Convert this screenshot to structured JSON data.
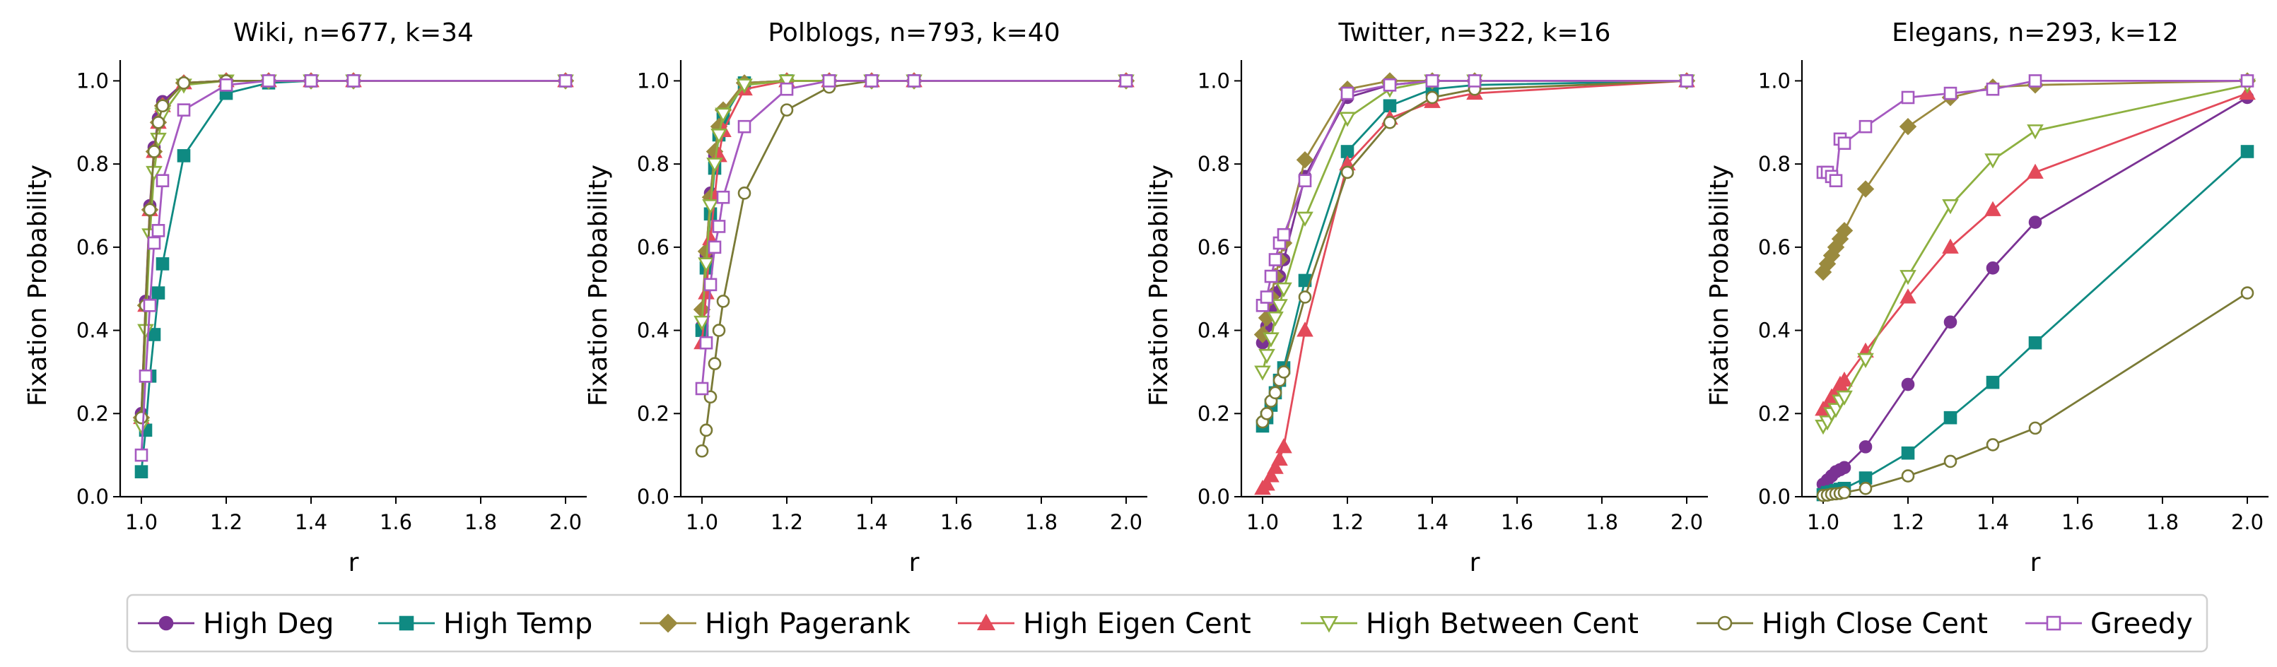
{
  "chart_data": [
    {
      "type": "line",
      "title": "Wiki, n=677, k=34",
      "xlabel": "r",
      "ylabel": "Fixation Probability",
      "xlim": [
        0.95,
        2.05
      ],
      "ylim": [
        0.0,
        1.05
      ],
      "xticks": [
        "1.0",
        "1.2",
        "1.4",
        "1.6",
        "1.8",
        "2.0"
      ],
      "yticks": [
        "0.0",
        "0.2",
        "0.4",
        "0.6",
        "0.8",
        "1.0"
      ],
      "series": [
        {
          "name": "High Deg",
          "x": [
            1.0,
            1.01,
            1.02,
            1.03,
            1.04,
            1.05,
            1.1,
            1.2,
            1.3,
            1.4,
            1.5,
            2.0
          ],
          "values": [
            0.2,
            0.47,
            0.7,
            0.84,
            0.91,
            0.95,
            0.995,
            1.0,
            1.0,
            1.0,
            1.0,
            1.0
          ]
        },
        {
          "name": "High Temp",
          "x": [
            1.0,
            1.01,
            1.02,
            1.03,
            1.04,
            1.05,
            1.1,
            1.2,
            1.3,
            1.4,
            1.5,
            2.0
          ],
          "values": [
            0.06,
            0.16,
            0.29,
            0.39,
            0.49,
            0.56,
            0.82,
            0.97,
            0.995,
            1.0,
            1.0,
            1.0
          ]
        },
        {
          "name": "High Pagerank",
          "x": [
            1.0,
            1.01,
            1.02,
            1.03,
            1.04,
            1.05,
            1.1,
            1.2,
            1.3,
            1.4,
            1.5,
            2.0
          ],
          "values": [
            0.19,
            0.46,
            0.69,
            0.83,
            0.9,
            0.94,
            0.995,
            1.0,
            1.0,
            1.0,
            1.0,
            1.0
          ]
        },
        {
          "name": "High Eigen Cent",
          "x": [
            1.0,
            1.01,
            1.02,
            1.03,
            1.04,
            1.05,
            1.1,
            1.2,
            1.3,
            1.4,
            1.5,
            2.0
          ],
          "values": [
            0.19,
            0.46,
            0.69,
            0.83,
            0.9,
            0.94,
            0.995,
            1.0,
            1.0,
            1.0,
            1.0,
            1.0
          ]
        },
        {
          "name": "High Between Cent",
          "x": [
            1.0,
            1.01,
            1.02,
            1.03,
            1.04,
            1.05,
            1.1,
            1.2,
            1.3,
            1.4,
            1.5,
            2.0
          ],
          "values": [
            0.17,
            0.4,
            0.63,
            0.78,
            0.86,
            0.92,
            0.99,
            1.0,
            1.0,
            1.0,
            1.0,
            1.0
          ]
        },
        {
          "name": "High Close Cent",
          "x": [
            1.0,
            1.01,
            1.02,
            1.03,
            1.04,
            1.05,
            1.1,
            1.2,
            1.3,
            1.4,
            1.5,
            2.0
          ],
          "values": [
            0.19,
            0.46,
            0.69,
            0.83,
            0.9,
            0.94,
            0.995,
            1.0,
            1.0,
            1.0,
            1.0,
            1.0
          ]
        },
        {
          "name": "Greedy",
          "x": [
            1.0,
            1.01,
            1.02,
            1.03,
            1.04,
            1.05,
            1.1,
            1.2,
            1.3,
            1.4,
            1.5,
            2.0
          ],
          "values": [
            0.1,
            0.29,
            0.46,
            0.61,
            0.64,
            0.76,
            0.93,
            0.99,
            1.0,
            1.0,
            1.0,
            1.0
          ]
        }
      ]
    },
    {
      "type": "line",
      "title": "Polblogs, n=793, k=40",
      "xlabel": "r",
      "ylabel": "Fixation Probability",
      "xlim": [
        0.95,
        2.05
      ],
      "ylim": [
        0.0,
        1.05
      ],
      "xticks": [
        "1.0",
        "1.2",
        "1.4",
        "1.6",
        "1.8",
        "2.0"
      ],
      "yticks": [
        "0.0",
        "0.2",
        "0.4",
        "0.6",
        "0.8",
        "1.0"
      ],
      "series": [
        {
          "name": "High Deg",
          "x": [
            1.0,
            1.01,
            1.02,
            1.03,
            1.04,
            1.05,
            1.1,
            1.2,
            1.3,
            1.4,
            1.5,
            2.0
          ],
          "values": [
            0.41,
            0.58,
            0.73,
            0.82,
            0.88,
            0.92,
            0.995,
            1.0,
            1.0,
            1.0,
            1.0,
            1.0
          ]
        },
        {
          "name": "High Temp",
          "x": [
            1.0,
            1.01,
            1.02,
            1.03,
            1.04,
            1.05,
            1.1,
            1.2,
            1.3,
            1.4,
            1.5,
            2.0
          ],
          "values": [
            0.4,
            0.55,
            0.68,
            0.79,
            0.87,
            0.91,
            0.995,
            1.0,
            1.0,
            1.0,
            1.0,
            1.0
          ]
        },
        {
          "name": "High Pagerank",
          "x": [
            1.0,
            1.01,
            1.02,
            1.03,
            1.04,
            1.05,
            1.1,
            1.2,
            1.3,
            1.4,
            1.5,
            2.0
          ],
          "values": [
            0.45,
            0.59,
            0.72,
            0.83,
            0.89,
            0.93,
            0.995,
            1.0,
            1.0,
            1.0,
            1.0,
            1.0
          ]
        },
        {
          "name": "High Eigen Cent",
          "x": [
            1.0,
            1.01,
            1.02,
            1.03,
            1.04,
            1.05,
            1.1,
            1.2,
            1.3,
            1.4,
            1.5,
            2.0
          ],
          "values": [
            0.37,
            0.49,
            0.62,
            0.72,
            0.82,
            0.88,
            0.98,
            1.0,
            1.0,
            1.0,
            1.0,
            1.0
          ]
        },
        {
          "name": "High Between Cent",
          "x": [
            1.0,
            1.01,
            1.02,
            1.03,
            1.04,
            1.05,
            1.1,
            1.2,
            1.3,
            1.4,
            1.5,
            2.0
          ],
          "values": [
            0.42,
            0.56,
            0.7,
            0.8,
            0.87,
            0.92,
            0.99,
            1.0,
            1.0,
            1.0,
            1.0,
            1.0
          ]
        },
        {
          "name": "High Close Cent",
          "x": [
            1.0,
            1.01,
            1.02,
            1.03,
            1.04,
            1.05,
            1.1,
            1.2,
            1.3,
            1.4,
            1.5,
            2.0
          ],
          "values": [
            0.11,
            0.16,
            0.24,
            0.32,
            0.4,
            0.47,
            0.73,
            0.93,
            0.985,
            1.0,
            1.0,
            1.0
          ]
        },
        {
          "name": "Greedy",
          "x": [
            1.0,
            1.01,
            1.02,
            1.03,
            1.04,
            1.05,
            1.1,
            1.2,
            1.3,
            1.4,
            1.5,
            2.0
          ],
          "values": [
            0.26,
            0.37,
            0.51,
            0.6,
            0.65,
            0.72,
            0.89,
            0.98,
            1.0,
            1.0,
            1.0,
            1.0
          ]
        }
      ]
    },
    {
      "type": "line",
      "title": "Twitter, n=322, k=16",
      "xlabel": "r",
      "ylabel": "Fixation Probability",
      "xlim": [
        0.95,
        2.05
      ],
      "ylim": [
        0.0,
        1.05
      ],
      "xticks": [
        "1.0",
        "1.2",
        "1.4",
        "1.6",
        "1.8",
        "2.0"
      ],
      "yticks": [
        "0.0",
        "0.2",
        "0.4",
        "0.6",
        "0.8",
        "1.0"
      ],
      "series": [
        {
          "name": "High Deg",
          "x": [
            1.0,
            1.01,
            1.02,
            1.03,
            1.04,
            1.05,
            1.1,
            1.2,
            1.3,
            1.4,
            1.5,
            2.0
          ],
          "values": [
            0.37,
            0.41,
            0.45,
            0.49,
            0.53,
            0.57,
            0.77,
            0.96,
            0.99,
            1.0,
            1.0,
            1.0
          ]
        },
        {
          "name": "High Temp",
          "x": [
            1.0,
            1.01,
            1.02,
            1.03,
            1.04,
            1.05,
            1.1,
            1.2,
            1.3,
            1.4,
            1.5,
            2.0
          ],
          "values": [
            0.17,
            0.19,
            0.22,
            0.25,
            0.28,
            0.31,
            0.52,
            0.83,
            0.94,
            0.98,
            0.99,
            1.0
          ]
        },
        {
          "name": "High Pagerank",
          "x": [
            1.0,
            1.01,
            1.02,
            1.03,
            1.04,
            1.05,
            1.1,
            1.2,
            1.3,
            1.4,
            1.5,
            2.0
          ],
          "values": [
            0.39,
            0.43,
            0.48,
            0.53,
            0.57,
            0.61,
            0.81,
            0.98,
            1.0,
            1.0,
            1.0,
            1.0
          ]
        },
        {
          "name": "High Eigen Cent",
          "x": [
            1.0,
            1.01,
            1.02,
            1.03,
            1.04,
            1.05,
            1.1,
            1.2,
            1.3,
            1.4,
            1.5,
            2.0
          ],
          "values": [
            0.02,
            0.03,
            0.05,
            0.07,
            0.09,
            0.12,
            0.4,
            0.8,
            0.91,
            0.95,
            0.97,
            1.0
          ]
        },
        {
          "name": "High Between Cent",
          "x": [
            1.0,
            1.01,
            1.02,
            1.03,
            1.04,
            1.05,
            1.1,
            1.2,
            1.3,
            1.4,
            1.5,
            2.0
          ],
          "values": [
            0.3,
            0.34,
            0.38,
            0.43,
            0.46,
            0.5,
            0.67,
            0.91,
            0.98,
            1.0,
            1.0,
            1.0
          ]
        },
        {
          "name": "High Close Cent",
          "x": [
            1.0,
            1.01,
            1.02,
            1.03,
            1.04,
            1.05,
            1.1,
            1.2,
            1.3,
            1.4,
            1.5,
            2.0
          ],
          "values": [
            0.18,
            0.2,
            0.23,
            0.25,
            0.28,
            0.3,
            0.48,
            0.78,
            0.9,
            0.96,
            0.98,
            1.0
          ]
        },
        {
          "name": "Greedy",
          "x": [
            1.0,
            1.01,
            1.02,
            1.03,
            1.04,
            1.05,
            1.1,
            1.2,
            1.3,
            1.4,
            1.5,
            2.0
          ],
          "values": [
            0.46,
            0.48,
            0.53,
            0.57,
            0.61,
            0.63,
            0.76,
            0.97,
            0.99,
            1.0,
            1.0,
            1.0
          ]
        }
      ]
    },
    {
      "type": "line",
      "title": "Elegans, n=293, k=12",
      "xlabel": "r",
      "ylabel": "Fixation Probability",
      "xlim": [
        0.95,
        2.05
      ],
      "ylim": [
        0.0,
        1.05
      ],
      "xticks": [
        "1.0",
        "1.2",
        "1.4",
        "1.6",
        "1.8",
        "2.0"
      ],
      "yticks": [
        "0.0",
        "0.2",
        "0.4",
        "0.6",
        "0.8",
        "1.0"
      ],
      "series": [
        {
          "name": "High Deg",
          "x": [
            1.0,
            1.01,
            1.02,
            1.03,
            1.04,
            1.05,
            1.1,
            1.2,
            1.3,
            1.4,
            1.5,
            2.0
          ],
          "values": [
            0.03,
            0.04,
            0.05,
            0.06,
            0.065,
            0.07,
            0.12,
            0.27,
            0.42,
            0.55,
            0.66,
            0.96
          ]
        },
        {
          "name": "High Temp",
          "x": [
            1.0,
            1.01,
            1.02,
            1.03,
            1.04,
            1.05,
            1.1,
            1.2,
            1.3,
            1.4,
            1.5,
            2.0
          ],
          "values": [
            0.005,
            0.01,
            0.012,
            0.015,
            0.018,
            0.02,
            0.045,
            0.105,
            0.19,
            0.275,
            0.37,
            0.83
          ]
        },
        {
          "name": "High Pagerank",
          "x": [
            1.0,
            1.01,
            1.02,
            1.03,
            1.04,
            1.05,
            1.1,
            1.2,
            1.3,
            1.4,
            1.5,
            2.0
          ],
          "values": [
            0.54,
            0.56,
            0.58,
            0.6,
            0.62,
            0.64,
            0.74,
            0.89,
            0.96,
            0.985,
            0.99,
            1.0
          ]
        },
        {
          "name": "High Eigen Cent",
          "x": [
            1.0,
            1.01,
            1.02,
            1.03,
            1.04,
            1.05,
            1.1,
            1.2,
            1.3,
            1.4,
            1.5,
            2.0
          ],
          "values": [
            0.21,
            0.22,
            0.24,
            0.25,
            0.27,
            0.28,
            0.35,
            0.48,
            0.6,
            0.69,
            0.78,
            0.97
          ]
        },
        {
          "name": "High Between Cent",
          "x": [
            1.0,
            1.01,
            1.02,
            1.03,
            1.04,
            1.05,
            1.1,
            1.2,
            1.3,
            1.4,
            1.5,
            2.0
          ],
          "values": [
            0.17,
            0.18,
            0.2,
            0.21,
            0.23,
            0.24,
            0.33,
            0.53,
            0.7,
            0.81,
            0.88,
            0.99
          ]
        },
        {
          "name": "High Close Cent",
          "x": [
            1.0,
            1.01,
            1.02,
            1.03,
            1.04,
            1.05,
            1.1,
            1.2,
            1.3,
            1.4,
            1.5,
            2.0
          ],
          "values": [
            0.003,
            0.004,
            0.006,
            0.007,
            0.008,
            0.01,
            0.02,
            0.05,
            0.085,
            0.125,
            0.165,
            0.49
          ]
        },
        {
          "name": "Greedy",
          "x": [
            1.0,
            1.01,
            1.02,
            1.03,
            1.04,
            1.05,
            1.1,
            1.2,
            1.3,
            1.4,
            1.5,
            2.0
          ],
          "values": [
            0.78,
            0.78,
            0.77,
            0.76,
            0.86,
            0.85,
            0.89,
            0.96,
            0.97,
            0.98,
            1.0,
            1.0
          ]
        }
      ]
    }
  ],
  "legend": {
    "placement": "bottom",
    "items": [
      {
        "label": "High Deg",
        "color": "#7b3294",
        "marker": "circle-filled"
      },
      {
        "label": "High Temp",
        "color": "#0f8a82",
        "marker": "square-filled"
      },
      {
        "label": "High Pagerank",
        "color": "#9a8a3e",
        "marker": "diamond-filled"
      },
      {
        "label": "High Eigen Cent",
        "color": "#e34a5a",
        "marker": "triangle-up-filled"
      },
      {
        "label": "High Between Cent",
        "color": "#8db040",
        "marker": "triangle-down-open"
      },
      {
        "label": "High Close Cent",
        "color": "#7a7a36",
        "marker": "circle-open"
      },
      {
        "label": "Greedy",
        "color": "#a559c0",
        "marker": "square-open"
      }
    ]
  }
}
